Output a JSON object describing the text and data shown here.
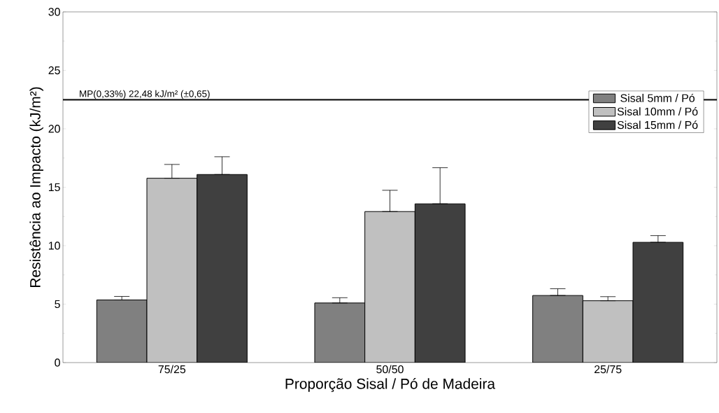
{
  "chart_data": {
    "type": "bar",
    "xlabel": "Proporção Sisal / Pó de Madeira",
    "ylabel": "Resistência ao Impacto (kJ/m²)",
    "categories": [
      "75/25",
      "50/50",
      "25/75"
    ],
    "series": [
      {
        "name": "Sisal 5mm / Pó",
        "color": "#808080",
        "values": [
          5.36,
          5.1,
          5.74
        ],
        "errors": [
          [
            5.36,
            5.66
          ],
          [
            5.1,
            5.55
          ],
          [
            5.74,
            6.32
          ]
        ]
      },
      {
        "name": "Sisal 10mm / Pó",
        "color": "#c0c0c0",
        "values": [
          15.77,
          12.92,
          5.29
        ],
        "errors": [
          [
            15.77,
            16.95
          ],
          [
            12.92,
            14.74
          ],
          [
            5.29,
            5.64
          ]
        ]
      },
      {
        "name": "Sisal 15mm / Pó",
        "color": "#404040",
        "values": [
          16.09,
          13.58,
          10.29
        ],
        "errors": [
          [
            16.09,
            17.61
          ],
          [
            13.58,
            16.67
          ],
          [
            10.29,
            10.86
          ]
        ]
      }
    ],
    "ylim": [
      0,
      30
    ],
    "yticks": [
      0,
      5,
      10,
      15,
      20,
      25,
      30
    ],
    "ref_lines": [
      {
        "axis": "y",
        "value": 22.48,
        "label": "MP(0,33%) 22,48 kJ/m² (±0,65)",
        "color": "#000000"
      }
    ],
    "legend": "top right",
    "grid": false
  }
}
